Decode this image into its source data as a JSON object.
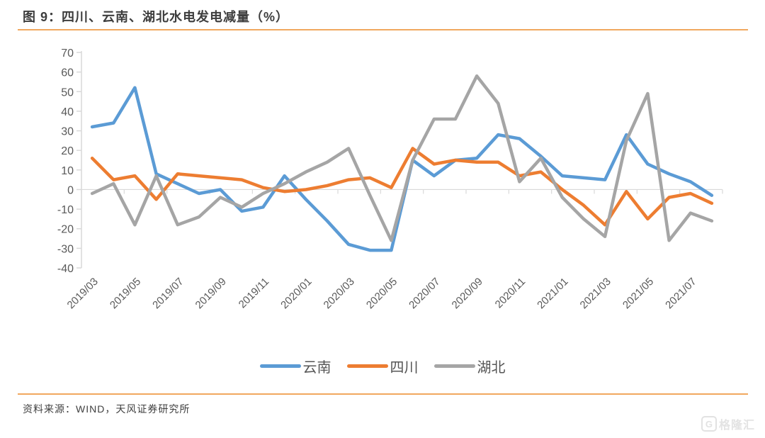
{
  "header": {
    "title": "图 9：四川、云南、湖北水电发电减量（%）"
  },
  "footer": {
    "source_label": "资料来源：WIND，天风证券研究所"
  },
  "watermark": {
    "logo_letter": "G",
    "text": "格隆汇"
  },
  "colors": {
    "yunnan_blue": "#5B9BD5",
    "sichuan_orange": "#ED7D31",
    "hubei_gray": "#A5A5A5",
    "accent_rule": "#F1A85F",
    "axis_line": "#D9D9D9",
    "tick_text": "#595959"
  },
  "chart_data": {
    "type": "line",
    "title": "图 9：四川、云南、湖北水电发电减量（%）",
    "x": [
      "2019/03",
      "2019/04",
      "2019/05",
      "2019/06",
      "2019/07",
      "2019/08",
      "2019/09",
      "2019/10",
      "2019/11",
      "2019/12",
      "2020/01",
      "2020/02",
      "2020/03",
      "2020/04",
      "2020/05",
      "2020/06",
      "2020/07",
      "2020/08",
      "2020/09",
      "2020/10",
      "2020/11",
      "2020/12",
      "2021/01",
      "2021/02",
      "2021/03",
      "2021/04",
      "2021/05",
      "2021/06",
      "2021/07",
      "2021/08"
    ],
    "x_tick_labels": [
      "2019/03",
      "2019/05",
      "2019/07",
      "2019/09",
      "2019/11",
      "2020/01",
      "2020/03",
      "2020/05",
      "2020/07",
      "2020/09",
      "2020/11",
      "2021/01",
      "2021/03",
      "2021/05",
      "2021/07"
    ],
    "ylim": [
      -40,
      70
    ],
    "y_ticks": [
      70,
      60,
      50,
      40,
      30,
      20,
      10,
      0,
      -10,
      -20,
      -30,
      -40
    ],
    "grid": "zero-baseline-only",
    "legend_position": "bottom-center",
    "series": [
      {
        "name": "云南",
        "color": "#5B9BD5",
        "values": [
          32,
          34,
          52,
          8,
          3,
          -2,
          0,
          -11,
          -9,
          7,
          -5,
          -16,
          -28,
          -31,
          -31,
          15,
          7,
          15,
          16,
          28,
          26,
          17,
          7,
          6,
          5,
          28,
          13,
          8,
          4,
          -3
        ]
      },
      {
        "name": "四川",
        "color": "#ED7D31",
        "values": [
          16,
          5,
          7,
          -5,
          8,
          7,
          6,
          5,
          1,
          -1,
          0,
          2,
          5,
          6,
          1,
          21,
          13,
          15,
          14,
          14,
          7,
          9,
          0,
          -8,
          -18,
          -1,
          -15,
          -4,
          -2,
          -7
        ]
      },
      {
        "name": "湖北",
        "color": "#A5A5A5",
        "values": [
          -2,
          3,
          -18,
          7,
          -18,
          -14,
          -4,
          -9,
          -2,
          3,
          9,
          14,
          21,
          -3,
          -26,
          15,
          36,
          36,
          58,
          44,
          4,
          16,
          -4,
          -15,
          -24,
          25,
          49,
          -26,
          -12,
          -16
        ]
      }
    ]
  }
}
